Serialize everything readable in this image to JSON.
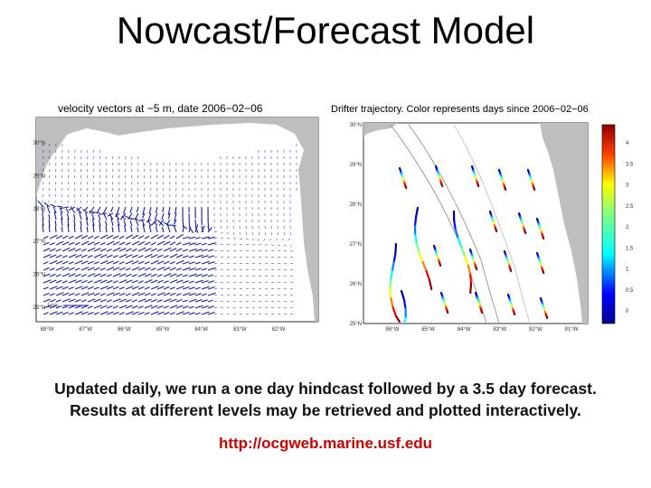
{
  "title": "Nowcast/Forecast Model",
  "left_figure": {
    "title": "velocity vectors at −5 m, date 2006−02−06",
    "scale_label": "1m/s",
    "y_ticks": [
      "30°N",
      "29°N",
      "28°N",
      "27°N",
      "26°N",
      "25°N"
    ],
    "x_ticks": [
      "88°W",
      "87°W",
      "86°W",
      "85°W",
      "84°W",
      "83°W",
      "82°W"
    ],
    "colors": {
      "land": "#bebebe",
      "water": "#ffffff",
      "vectors": "#1a1aa8"
    }
  },
  "right_figure": {
    "title": "Drifter trajectory. Color represents days since 2006−02−06",
    "y_ticks": [
      "30°N",
      "29°N",
      "28°N",
      "27°N",
      "26°N",
      "25°N"
    ],
    "x_ticks": [
      "86°W",
      "85°W",
      "84°W",
      "83°W",
      "82°W",
      "81°W"
    ],
    "colorbar_ticks": [
      "4",
      "3.5",
      "3",
      "2.5",
      "2",
      "1.5",
      "1",
      "0.5",
      "0"
    ],
    "colors": {
      "land": "#bebebe",
      "isobath": "#888888"
    }
  },
  "body": {
    "line1": "Updated daily, we run a one day hindcast followed by a 3.5 day forecast.",
    "line2": "Results at different levels may be retrieved and plotted interactively."
  },
  "link": "http://ocgweb.marine.usf.edu"
}
